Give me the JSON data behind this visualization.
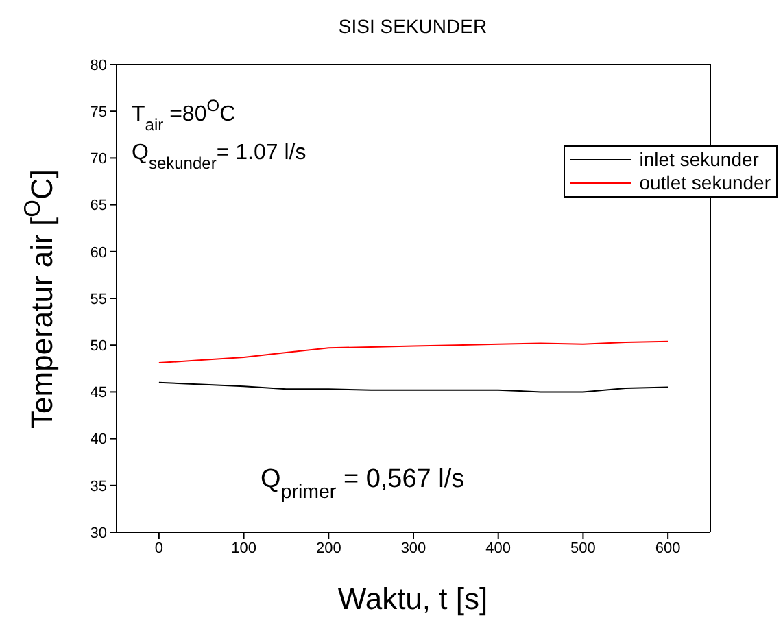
{
  "chart_data": {
    "type": "line",
    "title": "SISI SEKUNDER",
    "xlabel": "Waktu, t [s]",
    "ylabel": "Temperatur air [$^{O}$C]",
    "x": [
      0,
      50,
      100,
      150,
      200,
      250,
      300,
      350,
      400,
      450,
      500,
      550,
      600
    ],
    "series": [
      {
        "name": "inlet sekunder",
        "color": "#000000",
        "values": [
          46.0,
          45.8,
          45.6,
          45.3,
          45.3,
          45.2,
          45.2,
          45.2,
          45.2,
          45.0,
          45.0,
          45.4,
          45.5
        ]
      },
      {
        "name": "outlet sekunder",
        "color": "#ff0000",
        "values": [
          48.1,
          48.4,
          48.7,
          49.2,
          49.7,
          49.8,
          49.9,
          50.0,
          50.1,
          50.2,
          50.1,
          50.3,
          50.4
        ]
      }
    ],
    "xlim": [
      -50,
      650
    ],
    "xticks": [
      0,
      100,
      200,
      300,
      400,
      500,
      600
    ],
    "ylim": [
      30,
      80
    ],
    "yticks": [
      30,
      35,
      40,
      45,
      50,
      55,
      60,
      65,
      70,
      75,
      80
    ],
    "grid": false,
    "legend": "top right",
    "marker": "none",
    "line_style": "solid",
    "annotations": [
      "T$_{air}$ =80$^{O}$C",
      "Q$_{sekunder}$= 1.07 l/s",
      "Q$_{primer}$ = 0,567 l/s"
    ]
  }
}
